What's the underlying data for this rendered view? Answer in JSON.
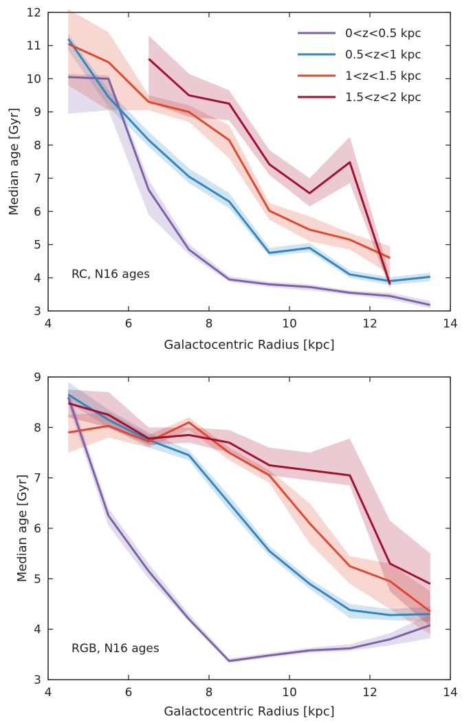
{
  "colors": {
    "series": [
      "#7b61a8",
      "#2f86c0",
      "#e0472f",
      "#a30f2e"
    ],
    "axes": "#222222",
    "background": "#ffffff"
  },
  "legend": {
    "placement": "top-right",
    "labels": [
      "0<z<0.5 kpc",
      "0.5<z<1 kpc",
      "1<z<1.5 kpc",
      "1.5<z<2 kpc"
    ]
  },
  "chart_data": [
    {
      "type": "line",
      "title": "",
      "xlabel": "Galactocentric Radius [kpc]",
      "ylabel": "Median age [Gyr]",
      "xlim": [
        4,
        14
      ],
      "ylim": [
        3,
        12
      ],
      "xticks": [
        4,
        6,
        8,
        10,
        12,
        14
      ],
      "yticks": [
        3,
        4,
        5,
        6,
        7,
        8,
        9,
        10,
        11,
        12
      ],
      "grid": false,
      "annotation": "RC, N16 ages",
      "series": [
        {
          "name": "0<z<0.5 kpc",
          "x": [
            4.5,
            5.5,
            6.5,
            7.5,
            8.5,
            9.5,
            10.5,
            11.5,
            12.5,
            13.5
          ],
          "y": [
            10.05,
            10.0,
            6.65,
            4.85,
            3.95,
            3.8,
            3.72,
            3.55,
            3.45,
            3.18
          ],
          "lower": [
            8.95,
            9.05,
            5.9,
            4.7,
            3.88,
            3.72,
            3.62,
            3.48,
            3.35,
            3.08
          ],
          "upper": [
            10.15,
            10.1,
            6.95,
            5.02,
            4.05,
            3.88,
            3.8,
            3.62,
            3.55,
            3.3
          ]
        },
        {
          "name": "0.5<z<1 kpc",
          "x": [
            4.5,
            5.5,
            6.5,
            7.5,
            8.5,
            9.5,
            10.5,
            11.5,
            12.5,
            13.5
          ],
          "y": [
            11.2,
            9.45,
            8.15,
            7.05,
            6.3,
            4.75,
            4.9,
            4.1,
            3.9,
            4.03
          ],
          "lower": [
            10.85,
            9.15,
            7.95,
            6.85,
            6.1,
            4.65,
            4.78,
            4.0,
            3.78,
            3.9
          ],
          "upper": [
            11.35,
            9.65,
            8.4,
            7.3,
            6.55,
            4.9,
            5.05,
            4.22,
            4.02,
            4.15
          ]
        },
        {
          "name": "1<z<1.5 kpc",
          "x": [
            4.5,
            5.5,
            6.5,
            7.5,
            8.5,
            9.5,
            10.5,
            11.5,
            12.5
          ],
          "y": [
            11.05,
            10.5,
            9.3,
            9.0,
            8.15,
            6.02,
            5.45,
            5.15,
            4.6
          ],
          "lower": [
            9.8,
            9.05,
            9.05,
            8.7,
            7.6,
            5.75,
            5.1,
            4.85,
            4.1
          ],
          "upper": [
            12.1,
            11.4,
            9.5,
            9.2,
            8.6,
            6.25,
            5.85,
            5.35,
            4.95
          ]
        },
        {
          "name": "1.5<z<2 kpc",
          "x": [
            6.5,
            7.5,
            8.5,
            9.5,
            10.5,
            11.5,
            12.5
          ],
          "y": [
            10.6,
            9.5,
            9.25,
            7.42,
            6.55,
            7.48,
            3.8
          ],
          "lower": [
            9.3,
            8.85,
            8.75,
            7.1,
            6.15,
            6.85,
            3.65
          ],
          "upper": [
            11.3,
            10.15,
            9.65,
            7.85,
            7.0,
            8.25,
            4.05
          ]
        }
      ]
    },
    {
      "type": "line",
      "title": "",
      "xlabel": "Galactocentric Radius [kpc]",
      "ylabel": "Median age [Gyr]",
      "xlim": [
        4,
        14
      ],
      "ylim": [
        3,
        9
      ],
      "xticks": [
        4,
        6,
        8,
        10,
        12,
        14
      ],
      "yticks": [
        3,
        4,
        5,
        6,
        7,
        8,
        9
      ],
      "grid": false,
      "annotation": "RGB, N16 ages",
      "series": [
        {
          "name": "0<z<0.5 kpc",
          "x": [
            4.5,
            5.5,
            6.5,
            7.5,
            8.5,
            9.5,
            10.5,
            11.5,
            12.5,
            13.5
          ],
          "y": [
            8.6,
            6.25,
            5.15,
            4.2,
            3.37,
            3.48,
            3.58,
            3.62,
            3.8,
            4.08
          ],
          "lower": [
            8.45,
            6.05,
            5.0,
            4.15,
            3.33,
            3.44,
            3.53,
            3.57,
            3.68,
            3.82
          ],
          "upper": [
            8.75,
            6.4,
            5.3,
            4.3,
            3.42,
            3.53,
            3.63,
            3.7,
            3.92,
            4.3
          ]
        },
        {
          "name": "0.5<z<1 kpc",
          "x": [
            4.5,
            5.5,
            6.5,
            7.5,
            8.5,
            9.5,
            10.5,
            11.5,
            12.5,
            13.5
          ],
          "y": [
            8.65,
            8.15,
            7.75,
            7.45,
            6.5,
            5.55,
            4.9,
            4.38,
            4.28,
            4.3
          ],
          "lower": [
            8.5,
            8.0,
            7.6,
            7.35,
            6.35,
            5.45,
            4.8,
            4.22,
            4.18,
            4.15
          ],
          "upper": [
            8.9,
            8.35,
            7.9,
            7.55,
            6.65,
            5.65,
            5.0,
            4.5,
            4.4,
            4.45
          ]
        },
        {
          "name": "1<z<1.5 kpc",
          "x": [
            4.5,
            5.5,
            6.5,
            7.5,
            8.5,
            9.5,
            10.5,
            11.5,
            12.5,
            13.5
          ],
          "y": [
            7.9,
            8.03,
            7.72,
            8.1,
            7.5,
            7.05,
            6.1,
            5.25,
            4.95,
            4.35
          ],
          "lower": [
            7.5,
            7.8,
            7.6,
            7.95,
            7.35,
            6.9,
            5.7,
            4.9,
            4.4,
            3.9
          ],
          "upper": [
            8.25,
            8.3,
            7.85,
            8.2,
            7.6,
            7.15,
            6.5,
            5.45,
            5.3,
            4.75
          ]
        },
        {
          "name": "1.5<z<2 kpc",
          "x": [
            4.5,
            5.5,
            6.5,
            7.5,
            8.5,
            9.5,
            10.5,
            11.5,
            12.5,
            13.5
          ],
          "y": [
            8.48,
            8.25,
            7.78,
            7.85,
            7.7,
            7.25,
            7.15,
            7.05,
            5.3,
            4.9
          ],
          "lower": [
            8.2,
            8.0,
            7.65,
            7.7,
            7.5,
            7.05,
            6.95,
            6.85,
            4.75,
            4.05
          ],
          "upper": [
            8.75,
            8.7,
            8.0,
            8.0,
            7.95,
            7.6,
            7.5,
            7.78,
            6.15,
            5.5
          ]
        }
      ]
    }
  ]
}
